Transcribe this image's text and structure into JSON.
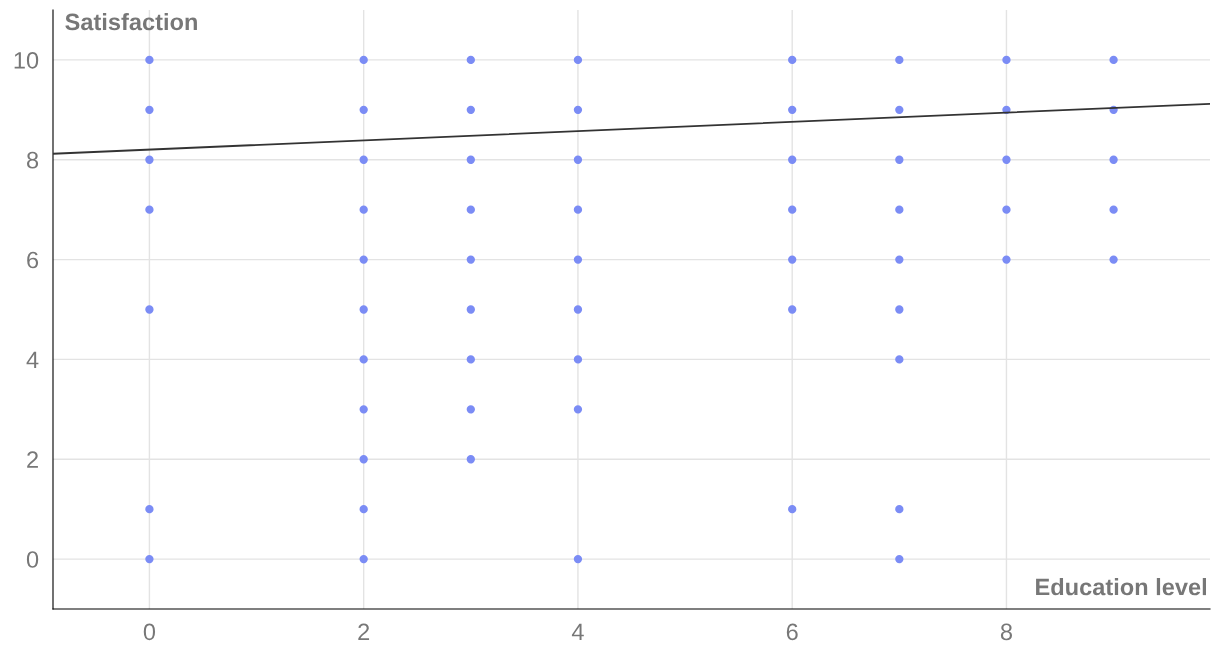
{
  "chart_data": {
    "type": "scatter",
    "xlabel": "Education level",
    "ylabel": "Satisfaction",
    "xlim": [
      -0.9,
      9.9
    ],
    "ylim": [
      -1,
      11
    ],
    "xticks": [
      0,
      2,
      4,
      6,
      8
    ],
    "yticks": [
      0,
      2,
      4,
      6,
      8,
      10
    ],
    "grid": true,
    "series": [
      {
        "color": "#7b8cf5",
        "marker": "circle",
        "x": [
          0,
          0,
          0,
          0,
          0,
          0,
          0,
          2,
          2,
          2,
          2,
          2,
          2,
          2,
          2,
          2,
          2,
          2,
          3,
          3,
          3,
          3,
          3,
          3,
          3,
          3,
          3,
          4,
          4,
          4,
          4,
          4,
          4,
          4,
          4,
          4,
          6,
          6,
          6,
          6,
          6,
          6,
          6,
          7,
          7,
          7,
          7,
          7,
          7,
          7,
          7,
          7,
          8,
          8,
          8,
          8,
          8,
          9,
          9,
          9,
          9,
          9
        ],
        "values": [
          10,
          9,
          8,
          7,
          5,
          1,
          0,
          10,
          9,
          8,
          7,
          6,
          5,
          4,
          3,
          2,
          1,
          0,
          10,
          9,
          8,
          7,
          6,
          5,
          4,
          3,
          2,
          10,
          9,
          8,
          7,
          6,
          5,
          4,
          3,
          0,
          10,
          9,
          8,
          7,
          6,
          5,
          1,
          10,
          9,
          8,
          7,
          6,
          5,
          4,
          1,
          0,
          10,
          9,
          8,
          7,
          6,
          10,
          9,
          8,
          7,
          6
        ]
      },
      {
        "type": "line",
        "color": "#333333",
        "x": [
          -0.9,
          9.9
        ],
        "values": [
          8.12,
          9.12
        ]
      }
    ]
  }
}
